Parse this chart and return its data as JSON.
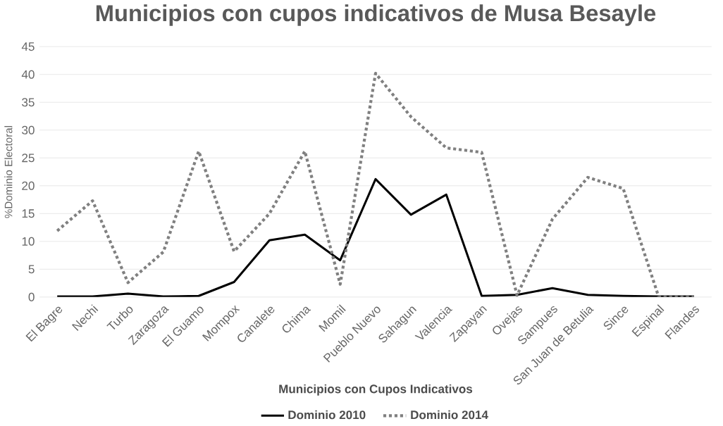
{
  "chart_data": {
    "type": "line",
    "title": "Municipios con cupos indicativos de Musa Besayle",
    "xlabel": "Municipios con Cupos Indicativos",
    "ylabel": "%Dominio Electoral",
    "categories": [
      "El Bagre",
      "Nechi",
      "Turbo",
      "Zaragoza",
      "El Guamo",
      "Mompox",
      "Canalete",
      "Chima",
      "Momil",
      "Pueblo Nuevo",
      "Sahagun",
      "Valencia",
      "Zapayan",
      "Ovejas",
      "Sampues",
      "San Juan de Betulia",
      "Since",
      "Espinal",
      "Flandes"
    ],
    "series": [
      {
        "name": "Dominio 2010",
        "color": "#000000",
        "line_style": "solid",
        "values": [
          0.1,
          0.1,
          0.6,
          0.1,
          0.2,
          2.7,
          10.2,
          11.2,
          6.6,
          21.2,
          14.8,
          18.4,
          0.2,
          0.4,
          1.6,
          0.4,
          0.2,
          0.1,
          0.1
        ]
      },
      {
        "name": "Dominio 2014",
        "color": "#808080",
        "line_style": "dotted",
        "values": [
          11.9,
          17.3,
          2.6,
          8.1,
          26.2,
          8.2,
          15.0,
          26.2,
          2.3,
          40.2,
          32.4,
          26.8,
          26.0,
          0.3,
          14.0,
          21.5,
          19.5,
          0.1,
          0.1
        ]
      }
    ],
    "ylim": [
      0,
      45
    ],
    "yticks": [
      0,
      5,
      10,
      15,
      20,
      25,
      30,
      35,
      40,
      45
    ],
    "grid": "y",
    "legend": "bottom",
    "marker": "none"
  }
}
